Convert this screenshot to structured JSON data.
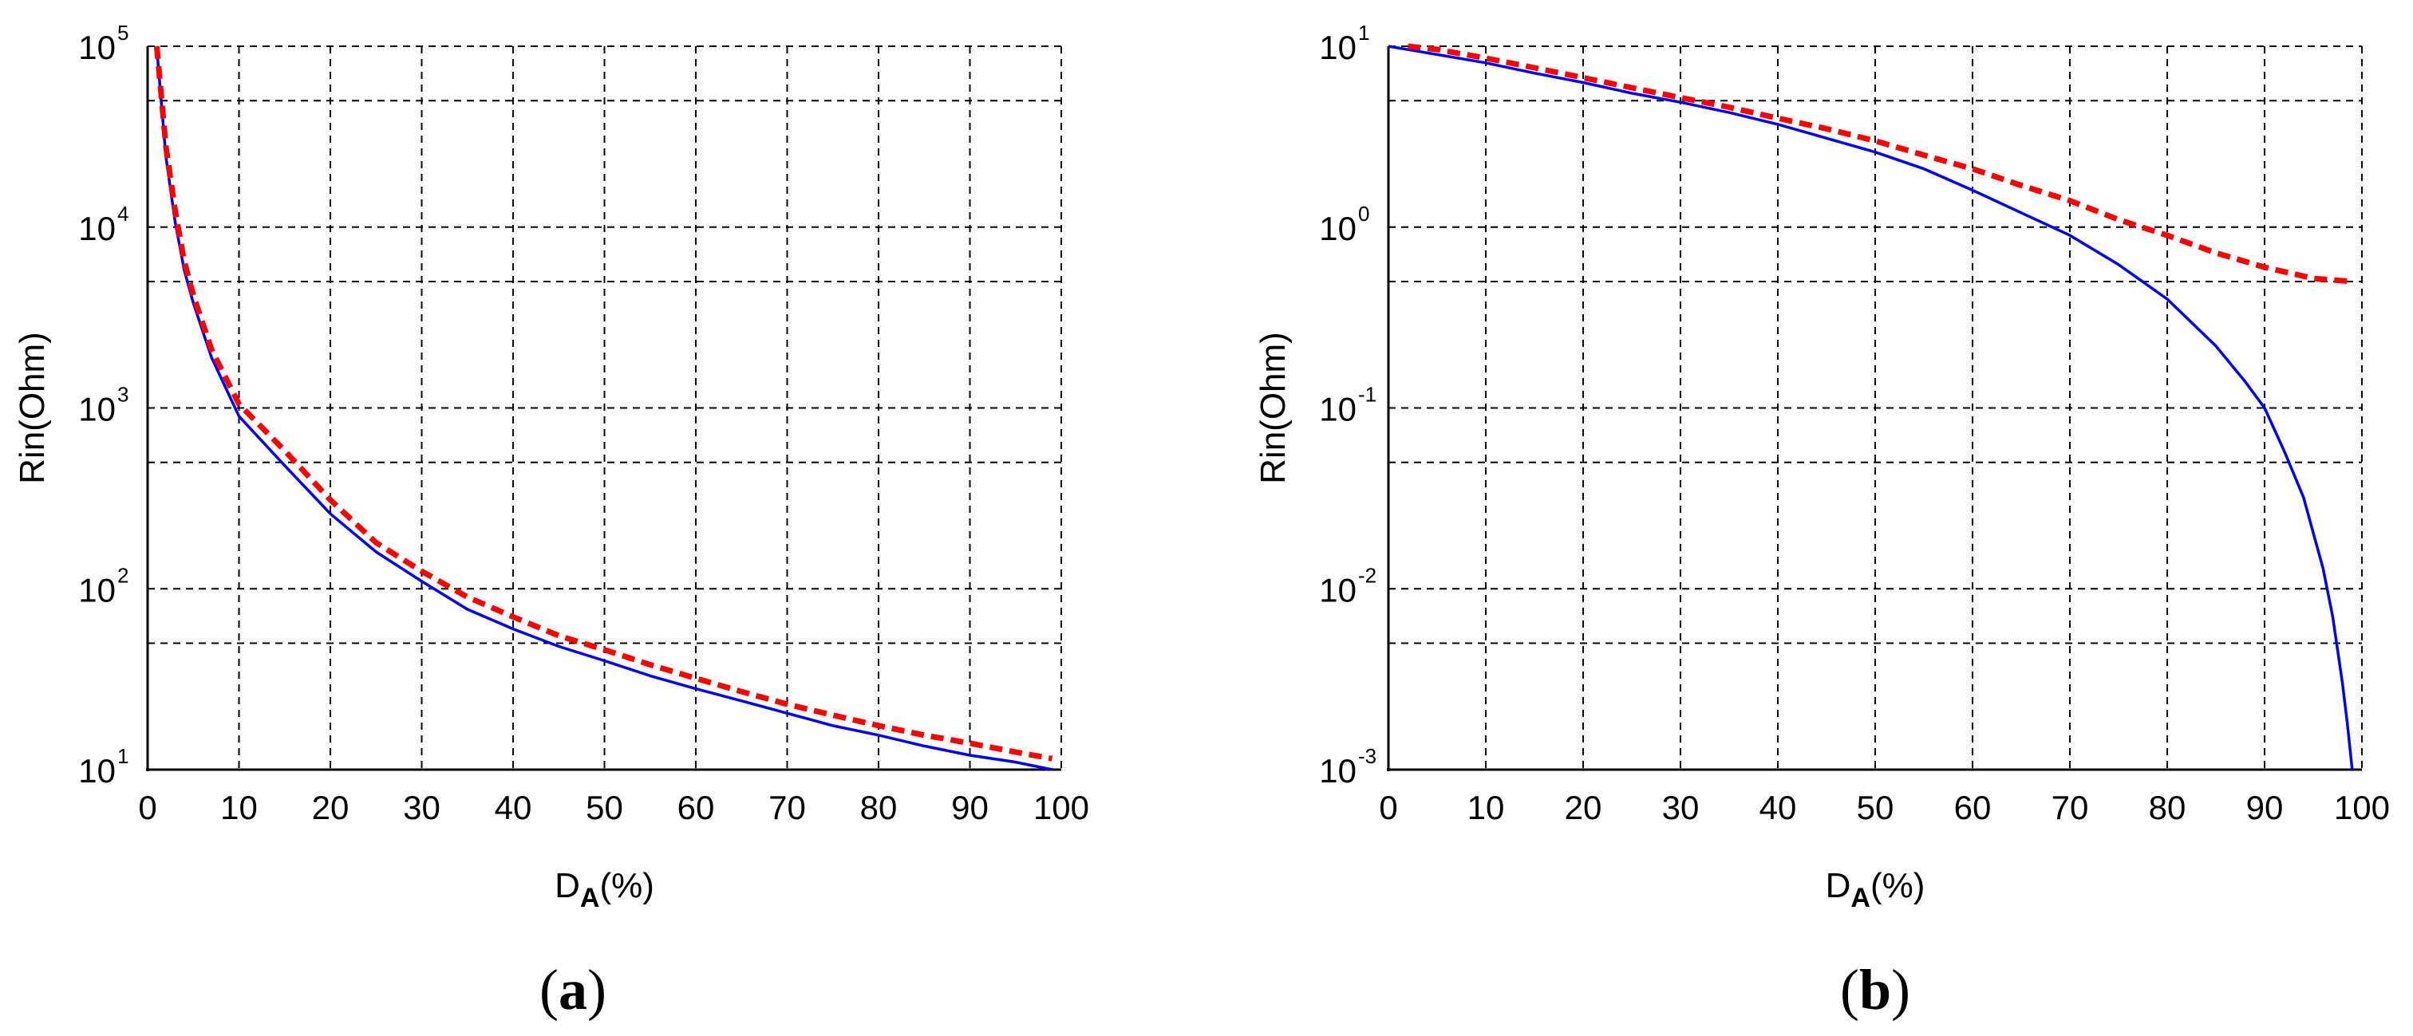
{
  "chart_data": [
    {
      "panel": "(a)",
      "panel_letter": "a",
      "type": "line",
      "xlabel": "D",
      "xlabel_sub": "A",
      "xlabel_suffix": "(%)",
      "ylabel": "Rin(Ohm)",
      "xlim": [
        0,
        100
      ],
      "ylim": [
        10,
        100000
      ],
      "yscale": "log",
      "x_ticks": [
        0,
        10,
        20,
        30,
        40,
        50,
        60,
        70,
        80,
        90,
        100
      ],
      "y_ticks": [
        {
          "base": "10",
          "exp": "1",
          "value": 10
        },
        {
          "base": "10",
          "exp": "2",
          "value": 100
        },
        {
          "base": "10",
          "exp": "3",
          "value": 1000
        },
        {
          "base": "10",
          "exp": "4",
          "value": 10000
        },
        {
          "base": "10",
          "exp": "5",
          "value": 100000
        }
      ],
      "grid": true,
      "series": [
        {
          "color": "#0000ff",
          "style": "solid",
          "x": [
            1,
            2,
            3,
            4,
            5,
            7,
            10,
            15,
            20,
            25,
            30,
            35,
            40,
            45,
            50,
            55,
            60,
            65,
            70,
            75,
            80,
            85,
            90,
            95,
            99
          ],
          "y": [
            99000,
            24500,
            10800,
            5800,
            3800,
            1900,
            900,
            480,
            260,
            160,
            110,
            77,
            60,
            48,
            40,
            33,
            28,
            24,
            20.5,
            17.5,
            15.5,
            13.5,
            12,
            11,
            10
          ]
        },
        {
          "color": "#ff0000",
          "style": "dashed",
          "x": [
            1,
            2,
            3,
            4,
            5,
            7,
            10,
            15,
            20,
            25,
            30,
            35,
            40,
            45,
            50,
            55,
            60,
            65,
            70,
            75,
            80,
            85,
            90,
            95,
            99
          ],
          "y": [
            100000,
            28000,
            12500,
            6500,
            4200,
            2100,
            1050,
            580,
            310,
            180,
            125,
            90,
            70,
            55,
            46,
            38,
            32,
            27,
            23,
            20,
            17.5,
            15.5,
            14,
            12.5,
            11.5
          ]
        }
      ]
    },
    {
      "panel": "(b)",
      "panel_letter": "b",
      "type": "line",
      "xlabel": "D",
      "xlabel_sub": "A",
      "xlabel_suffix": "(%)",
      "ylabel": "Rin(Ohm)",
      "xlim": [
        0,
        100
      ],
      "ylim": [
        0.001,
        10
      ],
      "yscale": "log",
      "x_ticks": [
        0,
        10,
        20,
        30,
        40,
        50,
        60,
        70,
        80,
        90,
        100
      ],
      "y_ticks": [
        {
          "base": "10",
          "exp": "-3",
          "value": 0.001
        },
        {
          "base": "10",
          "exp": "-2",
          "value": 0.01
        },
        {
          "base": "10",
          "exp": "-1",
          "value": 0.1
        },
        {
          "base": "10",
          "exp": "0",
          "value": 1
        },
        {
          "base": "10",
          "exp": "1",
          "value": 10
        }
      ],
      "grid": true,
      "series": [
        {
          "color": "#0000ff",
          "style": "solid",
          "x": [
            0,
            5,
            10,
            15,
            20,
            25,
            30,
            35,
            40,
            45,
            50,
            55,
            60,
            65,
            70,
            75,
            80,
            85,
            88,
            90,
            92,
            94,
            96,
            97,
            98,
            98.5,
            99
          ],
          "y": [
            10,
            9,
            8.1,
            7.1,
            6.3,
            5.5,
            4.9,
            4.3,
            3.7,
            3.1,
            2.6,
            2.1,
            1.6,
            1.2,
            0.9,
            0.62,
            0.4,
            0.22,
            0.14,
            0.1,
            0.058,
            0.032,
            0.013,
            0.007,
            0.003,
            0.0018,
            0.001
          ]
        },
        {
          "color": "#ff0000",
          "style": "dashed",
          "x": [
            2,
            5,
            10,
            15,
            20,
            25,
            30,
            35,
            40,
            45,
            50,
            55,
            60,
            65,
            70,
            75,
            80,
            85,
            90,
            95,
            99
          ],
          "y": [
            10,
            9.6,
            8.6,
            7.6,
            6.7,
            5.9,
            5.2,
            4.6,
            4.0,
            3.5,
            3.0,
            2.5,
            2.1,
            1.7,
            1.4,
            1.1,
            0.9,
            0.72,
            0.6,
            0.52,
            0.5
          ]
        }
      ]
    }
  ]
}
